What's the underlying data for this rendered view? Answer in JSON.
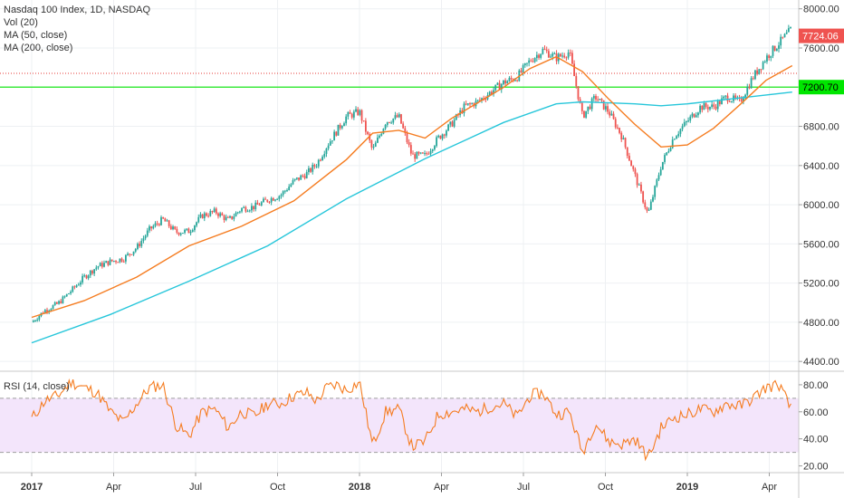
{
  "chart_data": {
    "type": "candlestick",
    "title": "Nasdaq 100 Index, 1D, NASDAQ",
    "legend": [
      "Nasdaq 100 Index, 1D, NASDAQ",
      "Vol (20)",
      "MA (50, close)",
      "MA (200, close)"
    ],
    "x_ticks": [
      "2017",
      "Apr",
      "Jul",
      "Oct",
      "2018",
      "Apr",
      "Jul",
      "Oct",
      "2019",
      "Apr"
    ],
    "price_axis": {
      "ticks": [
        "8000.00",
        "7600.00",
        "7200.00",
        "6800.00",
        "6400.00",
        "6000.00",
        "5600.00",
        "5200.00",
        "4800.00",
        "4400.00"
      ],
      "ylim": [
        4300,
        8090
      ]
    },
    "last_price": "7724.06",
    "horizontal_line": "7200.70",
    "colors": {
      "up": "#26a69a",
      "down": "#ef5350",
      "ma50": "#f57c20",
      "ma200": "#26c6da",
      "hline": "#00e600",
      "dotted_line": "#e53935",
      "rsi_line": "#f57c20",
      "rsi_band": "#f3e5fb"
    },
    "price_series": {
      "x": [
        0,
        0.04,
        0.08,
        0.12,
        0.16,
        0.2,
        0.24,
        0.28,
        0.32,
        0.36,
        0.4,
        0.44,
        0.48,
        0.52,
        0.56,
        0.6,
        0.64,
        0.68,
        0.72,
        0.76,
        0.8,
        0.84,
        0.87,
        0.9,
        0.93,
        0.96,
        1.0,
        1.04,
        1.08,
        1.12,
        1.16,
        1.2,
        1.24,
        1.28,
        1.32,
        1.36,
        1.4,
        1.44,
        1.48,
        1.52,
        1.56,
        1.6,
        1.64,
        1.68,
        1.72,
        1.76,
        1.8,
        1.84,
        1.88,
        1.92,
        1.96,
        2.0,
        2.04,
        2.08,
        2.12,
        2.16,
        2.2,
        2.24,
        2.28,
        2.32
      ],
      "close": [
        4800,
        4920,
        4990,
        5120,
        5260,
        5370,
        5420,
        5450,
        5560,
        5750,
        5850,
        5720,
        5730,
        5890,
        5930,
        5840,
        5960,
        5980,
        6050,
        6100,
        6240,
        6320,
        6420,
        6600,
        6750,
        6900,
        6950,
        6550,
        6850,
        6900,
        6500,
        6500,
        6680,
        6820,
        7000,
        7050,
        7150,
        7250,
        7300,
        7470,
        7580,
        7500,
        7560,
        6900,
        7100,
        6950,
        6700,
        6300,
        5900,
        6400,
        6700,
        6850,
        7000,
        7000,
        7100,
        7050,
        7300,
        7500,
        7650,
        7800
      ]
    },
    "ma50": {
      "x": [
        0,
        0.16,
        0.32,
        0.48,
        0.64,
        0.8,
        0.96,
        1.04,
        1.12,
        1.2,
        1.28,
        1.36,
        1.44,
        1.52,
        1.6,
        1.68,
        1.76,
        1.84,
        1.92,
        2.0,
        2.08,
        2.16,
        2.24,
        2.32
      ],
      "values": [
        4850,
        5020,
        5260,
        5580,
        5780,
        6040,
        6460,
        6730,
        6760,
        6680,
        6880,
        7040,
        7200,
        7390,
        7510,
        7360,
        7080,
        6820,
        6590,
        6610,
        6780,
        7020,
        7270,
        7420
      ]
    },
    "ma200": {
      "x": [
        0,
        0.24,
        0.48,
        0.72,
        0.96,
        1.2,
        1.44,
        1.6,
        1.68,
        1.76,
        1.84,
        1.92,
        2.0,
        2.08,
        2.16,
        2.24,
        2.32
      ],
      "values": [
        4590,
        4880,
        5220,
        5580,
        6060,
        6470,
        6840,
        7030,
        7050,
        7040,
        7030,
        7010,
        7030,
        7060,
        7090,
        7120,
        7150
      ]
    },
    "rsi": {
      "title": "RSI (14, close)",
      "ticks": [
        "80.00",
        "60.00",
        "40.00",
        "20.00"
      ],
      "ylim": [
        15,
        90
      ],
      "upper": 70,
      "lower": 30,
      "x": [
        0,
        0.04,
        0.08,
        0.12,
        0.16,
        0.2,
        0.24,
        0.28,
        0.32,
        0.36,
        0.4,
        0.44,
        0.48,
        0.52,
        0.56,
        0.6,
        0.64,
        0.68,
        0.72,
        0.76,
        0.8,
        0.84,
        0.87,
        0.9,
        0.93,
        0.96,
        1.0,
        1.04,
        1.08,
        1.12,
        1.16,
        1.2,
        1.24,
        1.28,
        1.32,
        1.36,
        1.4,
        1.44,
        1.48,
        1.52,
        1.56,
        1.6,
        1.64,
        1.68,
        1.72,
        1.76,
        1.8,
        1.84,
        1.88,
        1.92,
        1.96,
        2.0,
        2.04,
        2.08,
        2.12,
        2.16,
        2.2,
        2.24,
        2.28,
        2.32
      ],
      "values": [
        55,
        68,
        72,
        82,
        78,
        74,
        60,
        52,
        66,
        78,
        80,
        50,
        42,
        60,
        62,
        48,
        60,
        57,
        66,
        66,
        72,
        74,
        68,
        78,
        80,
        76,
        82,
        35,
        60,
        62,
        34,
        38,
        58,
        60,
        62,
        60,
        64,
        66,
        56,
        72,
        74,
        58,
        60,
        30,
        52,
        38,
        36,
        40,
        26,
        48,
        56,
        58,
        62,
        60,
        66,
        64,
        70,
        78,
        80,
        60
      ]
    }
  }
}
